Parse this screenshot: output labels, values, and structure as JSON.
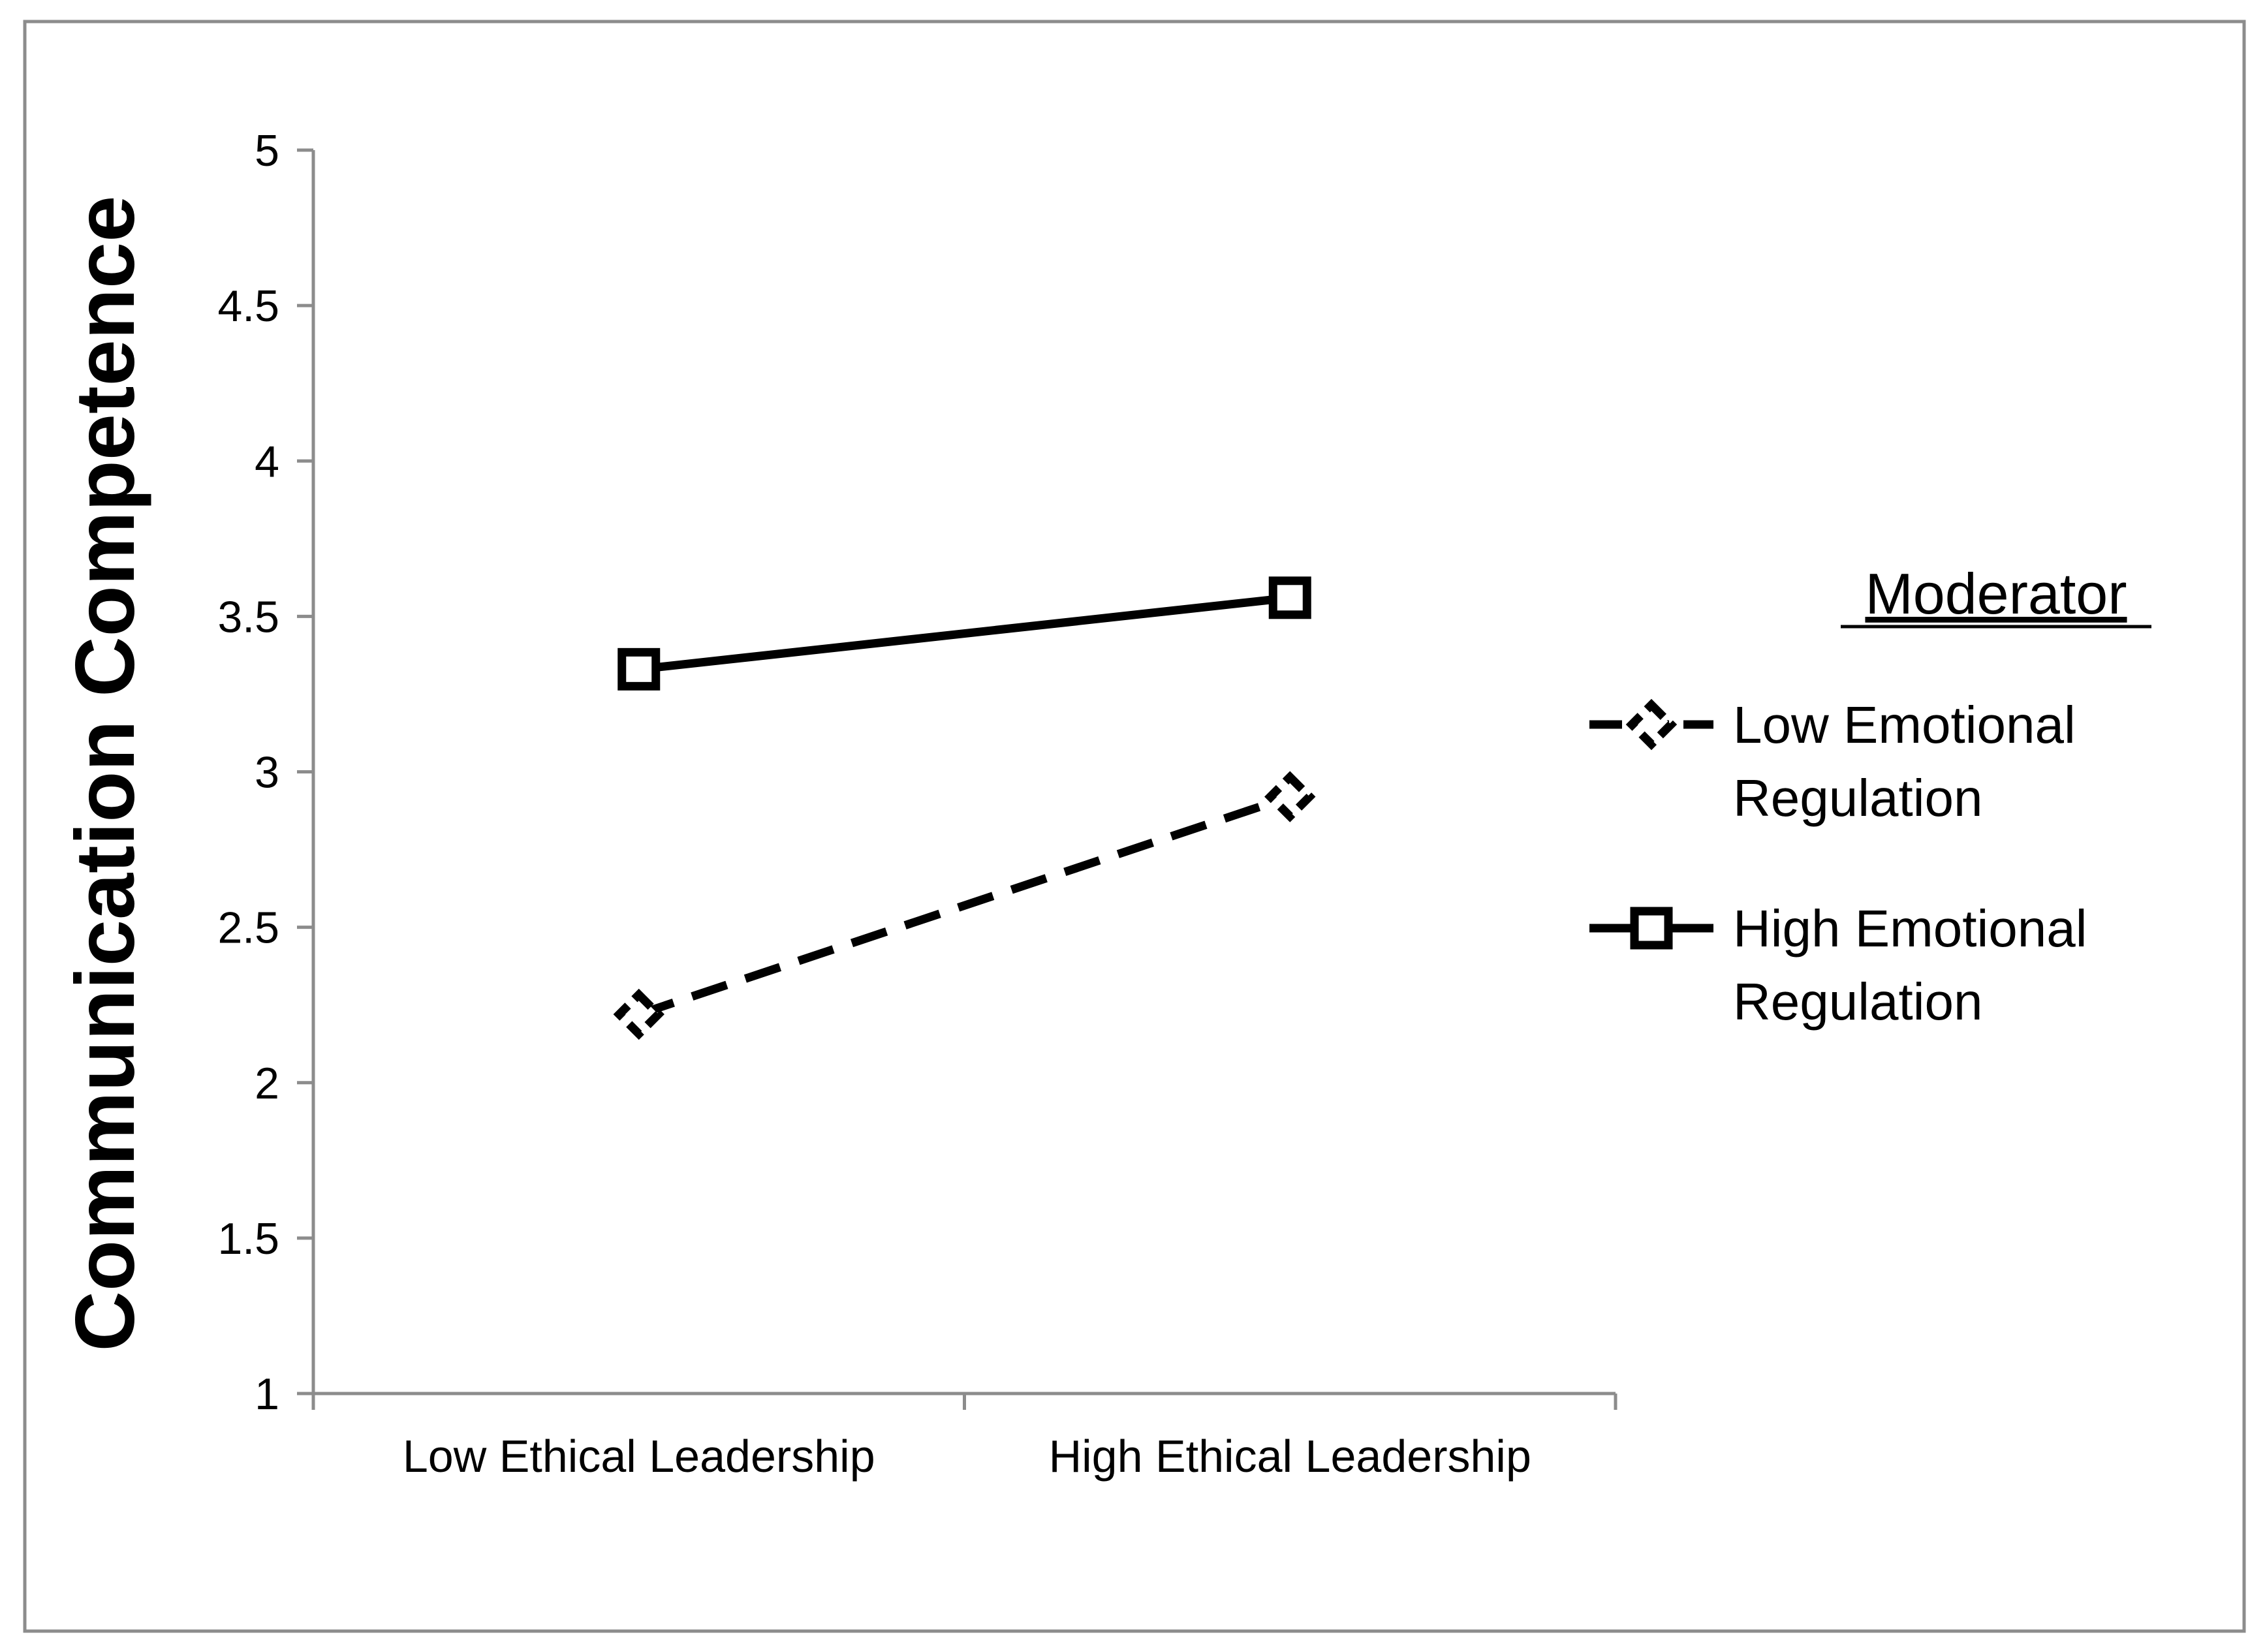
{
  "chart_data": {
    "type": "line",
    "title": "",
    "xlabel": "",
    "ylabel": "Communication Competence",
    "categories": [
      "Low Ethical Leadership",
      "High Ethical Leadership"
    ],
    "ylim": [
      1,
      5
    ],
    "yticks": [
      "1",
      "1.5",
      "2",
      "2.5",
      "3",
      "3.5",
      "4",
      "4.5",
      "5"
    ],
    "grid": false,
    "legend_position": "right",
    "legend_title": "Moderator",
    "series": [
      {
        "name_lines": [
          "Low Emotional",
          "Regulation"
        ],
        "values": [
          2.22,
          2.92
        ],
        "line_style": "dashed",
        "marker": "diamond",
        "color": "#000000"
      },
      {
        "name_lines": [
          "High Emotional",
          "Regulation"
        ],
        "values": [
          3.33,
          3.56
        ],
        "line_style": "solid",
        "marker": "square",
        "color": "#000000"
      }
    ]
  }
}
